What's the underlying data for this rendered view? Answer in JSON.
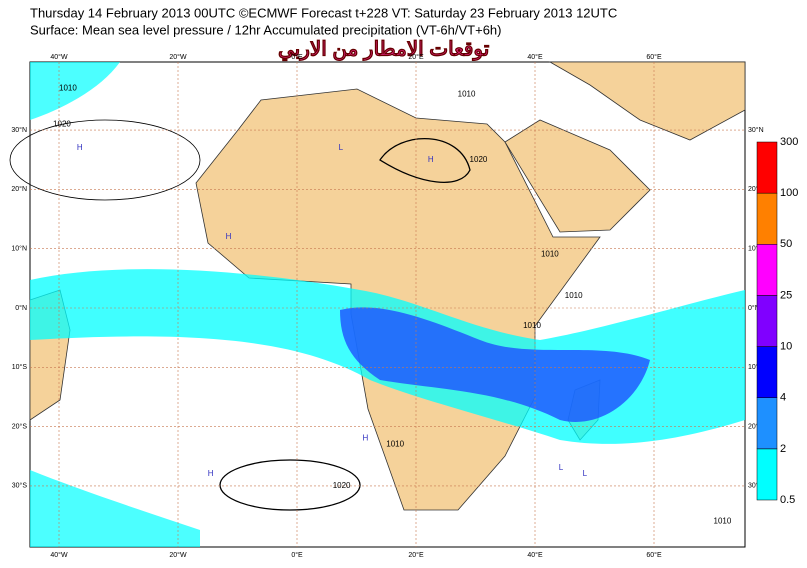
{
  "header": {
    "line1": "Thursday 14 February 2013 00UTC ©ECMWF Forecast t+228 VT: Saturday 23 February 2013 12UTC",
    "line2": "Surface: Mean sea level pressure / 12hr Accumulated precipitation (VT-6h/VT+6h)",
    "watermark": "توقعات الامطار من الاربي"
  },
  "map": {
    "lon_ticks": [
      {
        "value": -40,
        "label": "40°W"
      },
      {
        "value": -20,
        "label": "20°W"
      },
      {
        "value": 0,
        "label": "0°E"
      },
      {
        "value": 20,
        "label": "20°E"
      },
      {
        "value": 40,
        "label": "40°E"
      },
      {
        "value": 60,
        "label": "60°E"
      }
    ],
    "lat_ticks": [
      {
        "value": 30,
        "label": "30°N"
      },
      {
        "value": 20,
        "label": "20°N"
      },
      {
        "value": 10,
        "label": "10°N"
      },
      {
        "value": 0,
        "label": "0°N"
      },
      {
        "value": -10,
        "label": "10°S"
      },
      {
        "value": -20,
        "label": "20°S"
      },
      {
        "value": -30,
        "label": "30°S"
      }
    ],
    "contour_labels": [
      {
        "label": "1020",
        "lon": -41,
        "lat": 31
      },
      {
        "label": "1010",
        "lon": -40,
        "lat": 37
      },
      {
        "label": "1010",
        "lon": 27,
        "lat": 36
      },
      {
        "label": "1020",
        "lon": 29,
        "lat": 25
      },
      {
        "label": "1010",
        "lon": 41,
        "lat": 9
      },
      {
        "label": "1010",
        "lon": 45,
        "lat": 2
      },
      {
        "label": "1010",
        "lon": 38,
        "lat": -3
      },
      {
        "label": "1010",
        "lon": 15,
        "lat": -23
      },
      {
        "label": "1020",
        "lon": 6,
        "lat": -30
      },
      {
        "label": "1010",
        "lon": 70,
        "lat": -36
      }
    ],
    "pressure_centers": [
      {
        "label": "H",
        "lon": -37,
        "lat": 27
      },
      {
        "label": "L",
        "lon": 7,
        "lat": 27
      },
      {
        "label": "H",
        "lon": 22,
        "lat": 25
      },
      {
        "label": "H",
        "lon": -12,
        "lat": 12
      },
      {
        "label": "H",
        "lon": 11,
        "lat": -22
      },
      {
        "label": "L",
        "lon": 44,
        "lat": -27
      },
      {
        "label": "H",
        "lon": -15,
        "lat": -28
      },
      {
        "label": "L",
        "lon": 48,
        "lat": -28
      }
    ]
  },
  "colorbar": {
    "levels": [
      {
        "value": 0.5,
        "label": "0.5"
      },
      2,
      4,
      10,
      25,
      50,
      100,
      300
    ],
    "colors": [
      "#00ffff",
      "#1e90ff",
      "#0000ff",
      "#8000ff",
      "#ff00ff",
      "#ff8000",
      "#ff0000"
    ]
  }
}
